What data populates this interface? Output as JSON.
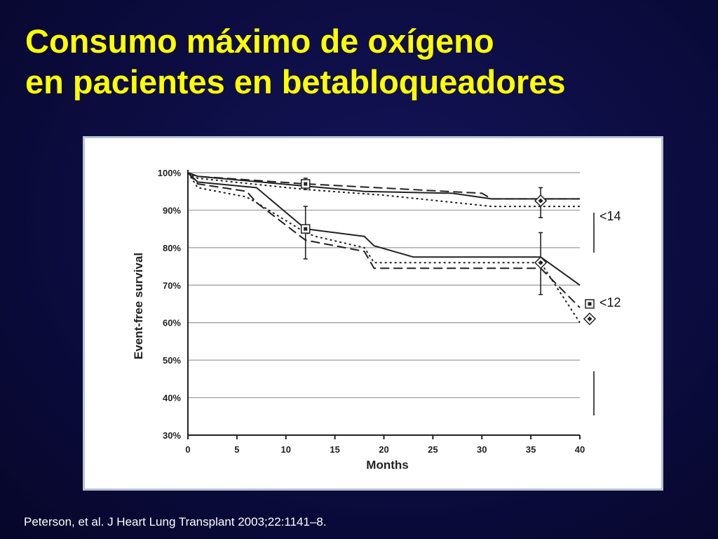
{
  "slide": {
    "title_line1": "Consumo máximo de oxígeno",
    "title_line2": "en pacientes en betabloqueadores",
    "citation": "Peterson, et al. J Heart Lung Transplant 2003;22:1141–8."
  },
  "colors": {
    "title": "#ffff00",
    "background": "#0c0c40",
    "citation": "#ffffff",
    "plot_lines": "#222222",
    "gridlines": "#999999"
  },
  "chart_data": {
    "type": "line",
    "title": "",
    "xlabel": "Months",
    "ylabel": "Event-free survival",
    "xlim": [
      0,
      40
    ],
    "ylim": [
      30,
      100
    ],
    "xticks": [
      "0",
      "5",
      "10",
      "15",
      "20",
      "25",
      "30",
      "35",
      "40"
    ],
    "yticks": [
      "30%",
      "40%",
      "50%",
      "60%",
      "70%",
      "80%",
      "90%",
      "100%"
    ],
    "grid": "horizontal",
    "group_labels": [
      "<14",
      "<12"
    ],
    "series": [
      {
        "style": "solid",
        "x": [
          0,
          1,
          18,
          27,
          31,
          40
        ],
        "y": [
          100,
          99,
          95,
          94.5,
          93,
          93
        ]
      },
      {
        "style": "dashed",
        "x": [
          0,
          1,
          12,
          30,
          31,
          40
        ],
        "y": [
          100,
          99,
          97,
          94.5,
          93,
          93
        ]
      },
      {
        "style": "dotted",
        "x": [
          0,
          1,
          12,
          20,
          31,
          40
        ],
        "y": [
          100,
          98.5,
          95.5,
          94,
          91,
          91
        ]
      },
      {
        "style": "solid",
        "x": [
          0,
          1,
          7,
          12,
          18,
          19,
          23,
          36,
          40
        ],
        "y": [
          100,
          97.5,
          96,
          85,
          83,
          80.5,
          77.5,
          77.5,
          70
        ]
      },
      {
        "style": "dashed",
        "x": [
          0,
          1,
          6,
          7,
          12,
          18,
          19,
          36,
          40
        ],
        "y": [
          100,
          97,
          95,
          92,
          82,
          79,
          74.5,
          74.5,
          64
        ]
      },
      {
        "style": "dotted",
        "x": [
          0,
          1,
          6,
          7,
          12,
          13,
          18,
          19,
          36,
          40
        ],
        "y": [
          100,
          96,
          93.5,
          92,
          84,
          83,
          80,
          76,
          76,
          60
        ]
      }
    ],
    "error_bars": [
      {
        "x": 12,
        "low": 95.5,
        "high": 98.5
      },
      {
        "x": 12,
        "low": 77,
        "high": 91
      },
      {
        "x": 36,
        "low": 88,
        "high": 96
      },
      {
        "x": 36,
        "low": 67.5,
        "high": 84
      }
    ],
    "markers": [
      {
        "shape": "square",
        "x": 12,
        "y": 97
      },
      {
        "shape": "square",
        "x": 12,
        "y": 85
      },
      {
        "shape": "diamond",
        "x": 36,
        "y": 92.5
      },
      {
        "shape": "diamond",
        "x": 36,
        "y": 76
      },
      {
        "shape": "square",
        "x": 41,
        "y": 65
      },
      {
        "shape": "diamond",
        "x": 41,
        "y": 61
      }
    ]
  }
}
